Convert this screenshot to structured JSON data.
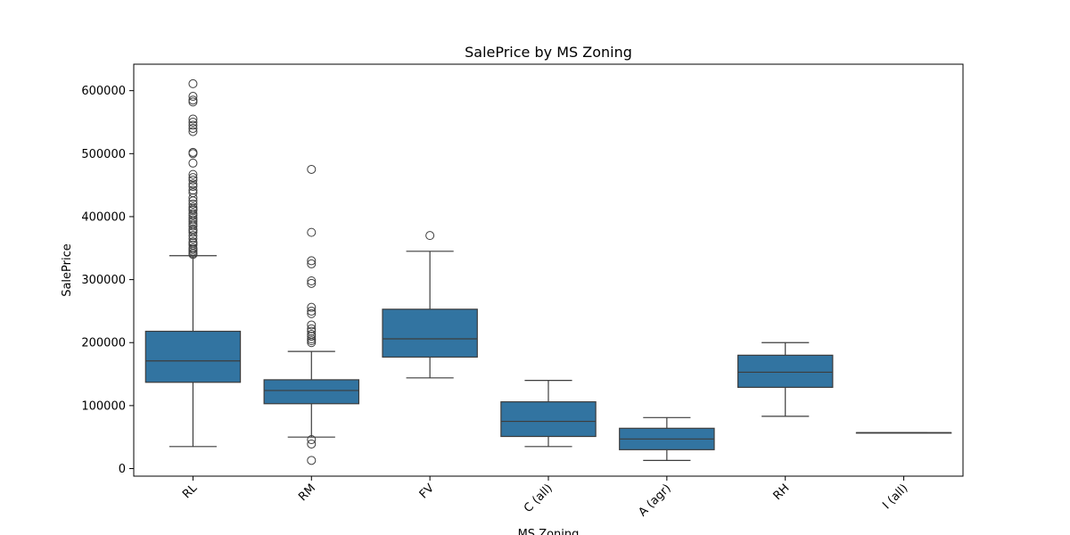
{
  "chart_data": {
    "type": "box",
    "title": "SalePrice by MS Zoning",
    "xlabel": "MS Zoning",
    "ylabel": "SalePrice",
    "ylim": [
      -12000,
      642000
    ],
    "yticks": [
      0,
      100000,
      200000,
      300000,
      400000,
      500000,
      600000
    ],
    "ytick_labels": [
      "0",
      "100000",
      "200000",
      "300000",
      "400000",
      "500000",
      "600000"
    ],
    "box_color": "#3274a1",
    "line_color": "#3d3d3d",
    "grid": false,
    "categories": [
      "RL",
      "RM",
      "FV",
      "C (all)",
      "A (agr)",
      "RH",
      "I (all)"
    ],
    "boxes": [
      {
        "category": "RL",
        "whisker_low": 35000,
        "q1": 137000,
        "median": 171000,
        "q3": 218000,
        "whisker_high": 338000,
        "outliers": [
          340000,
          342000,
          345000,
          348000,
          350000,
          355000,
          358000,
          360000,
          365000,
          370000,
          375000,
          378000,
          380000,
          385000,
          388000,
          392000,
          395000,
          398000,
          402000,
          405000,
          410000,
          412000,
          415000,
          420000,
          425000,
          430000,
          438000,
          442000,
          448000,
          452000,
          458000,
          462000,
          467000,
          485000,
          500000,
          502000,
          535000,
          540000,
          545000,
          550000,
          555000,
          582000,
          585000,
          591000,
          611000
        ]
      },
      {
        "category": "RM",
        "whisker_low": 50000,
        "q1": 103000,
        "median": 124000,
        "q3": 141000,
        "whisker_high": 186000,
        "outliers": [
          13000,
          39000,
          46000,
          200000,
          203000,
          206000,
          210000,
          213000,
          218000,
          222000,
          228000,
          246000,
          250000,
          256000,
          294000,
          298000,
          325000,
          330000,
          375000,
          475000
        ]
      },
      {
        "category": "FV",
        "whisker_low": 144000,
        "q1": 177000,
        "median": 206000,
        "q3": 253000,
        "whisker_high": 345000,
        "outliers": [
          370000
        ]
      },
      {
        "category": "C (all)",
        "whisker_low": 35000,
        "q1": 51000,
        "median": 75000,
        "q3": 106000,
        "whisker_high": 140000,
        "outliers": []
      },
      {
        "category": "A (agr)",
        "whisker_low": 13000,
        "q1": 30000,
        "median": 47000,
        "q3": 64000,
        "whisker_high": 81000,
        "outliers": []
      },
      {
        "category": "RH",
        "whisker_low": 83000,
        "q1": 129000,
        "median": 153000,
        "q3": 180000,
        "whisker_high": 200000,
        "outliers": []
      },
      {
        "category": "I (all)",
        "whisker_low": 57000,
        "q1": 57000,
        "median": 57000,
        "q3": 57000,
        "whisker_high": 57000,
        "outliers": []
      }
    ]
  }
}
